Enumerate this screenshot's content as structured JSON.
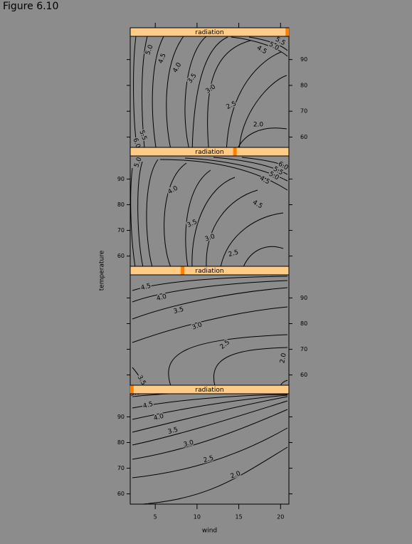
{
  "figure_title": "Figure 6.10",
  "colors": {
    "background": "#8c8c8c",
    "strip_fill": "#ffcc88",
    "strip_indicator": "#ff7f00",
    "line": "#000000"
  },
  "chart_data": {
    "type": "contour",
    "layout": "1 column x 4 rows (lattice contourplot conditioned on radiation)",
    "xlabel": "wind",
    "ylabel": "temperature",
    "xlim": [
      2,
      21
    ],
    "ylim": [
      56,
      99
    ],
    "x_ticks": [
      5,
      10,
      15,
      20
    ],
    "y_ticks": [
      60,
      70,
      80,
      90
    ],
    "panels": [
      {
        "strip_label": "radiation",
        "strip_position": 0.99,
        "contour_labels": [
          "5.0",
          "4.5",
          "4.0",
          "3.5",
          "3.0",
          "2.5",
          "2.0",
          "5.5",
          "6.0",
          "4.5",
          "5.0",
          "5.5"
        ]
      },
      {
        "strip_label": "radiation",
        "strip_position": 0.66,
        "contour_labels": [
          "5.0",
          "4.0",
          "3.5",
          "3.0",
          "2.5",
          "2.0",
          "1.5",
          "5.0",
          "4.5",
          "5.0",
          "5.5",
          "6.0",
          "4.5"
        ]
      },
      {
        "strip_label": "radiation",
        "strip_position": 0.33,
        "contour_labels": [
          "4.5",
          "4.0",
          "3.5",
          "3.0",
          "2.5",
          "2.0",
          "3.5"
        ]
      },
      {
        "strip_label": "radiation",
        "strip_position": 0.01,
        "contour_labels": [
          "5.0",
          "4.5",
          "4.0",
          "3.5",
          "3.0",
          "2.5",
          "2.0"
        ]
      }
    ]
  }
}
